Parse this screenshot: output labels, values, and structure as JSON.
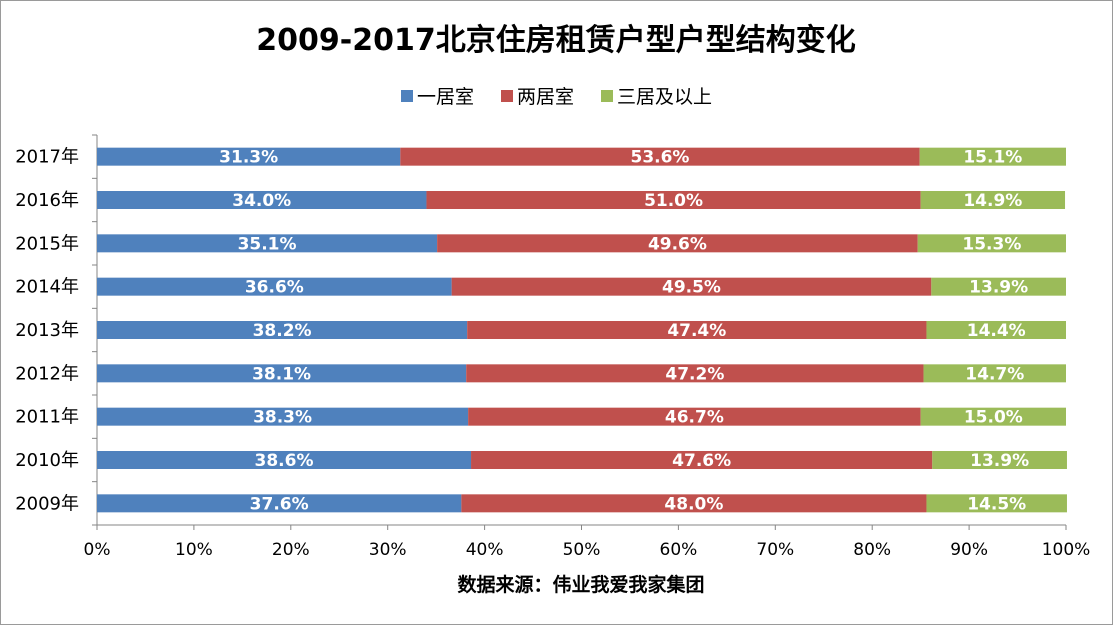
{
  "chart_data": {
    "type": "bar",
    "orientation": "horizontal",
    "stacked": "percent",
    "title": "2009-2017北京住房租赁户型户型结构变化",
    "xlabel": "数据来源：伟业我爱我家集团",
    "ylabel": "",
    "xlim": [
      0,
      100
    ],
    "x_ticks": [
      "0%",
      "10%",
      "20%",
      "30%",
      "40%",
      "50%",
      "60%",
      "70%",
      "80%",
      "90%",
      "100%"
    ],
    "categories": [
      "2017年",
      "2016年",
      "2015年",
      "2014年",
      "2013年",
      "2012年",
      "2011年",
      "2010年",
      "2009年"
    ],
    "series": [
      {
        "name": "一居室",
        "color": "#4f81bd",
        "values": [
          31.3,
          34.0,
          35.1,
          36.6,
          38.2,
          38.1,
          38.3,
          38.6,
          37.6
        ],
        "labels": [
          "31.3%",
          "34.0%",
          "35.1%",
          "36.6%",
          "38.2%",
          "38.1%",
          "38.3%",
          "38.6%",
          "37.6%"
        ]
      },
      {
        "name": "两居室",
        "color": "#c0504d",
        "values": [
          53.6,
          51.0,
          49.6,
          49.5,
          47.4,
          47.2,
          46.7,
          47.6,
          48.0
        ],
        "labels": [
          "53.6%",
          "51.0%",
          "49.6%",
          "49.5%",
          "47.4%",
          "47.2%",
          "46.7%",
          "47.6%",
          "48.0%"
        ]
      },
      {
        "name": "三居及以上",
        "color": "#9bbb59",
        "values": [
          15.1,
          14.9,
          15.3,
          13.9,
          14.4,
          14.7,
          15.0,
          13.9,
          14.5
        ],
        "labels": [
          "15.1%",
          "14.9%",
          "15.3%",
          "13.9%",
          "14.4%",
          "14.7%",
          "15.0%",
          "13.9%",
          "14.5%"
        ]
      }
    ],
    "legend_position": "top",
    "grid": false
  }
}
